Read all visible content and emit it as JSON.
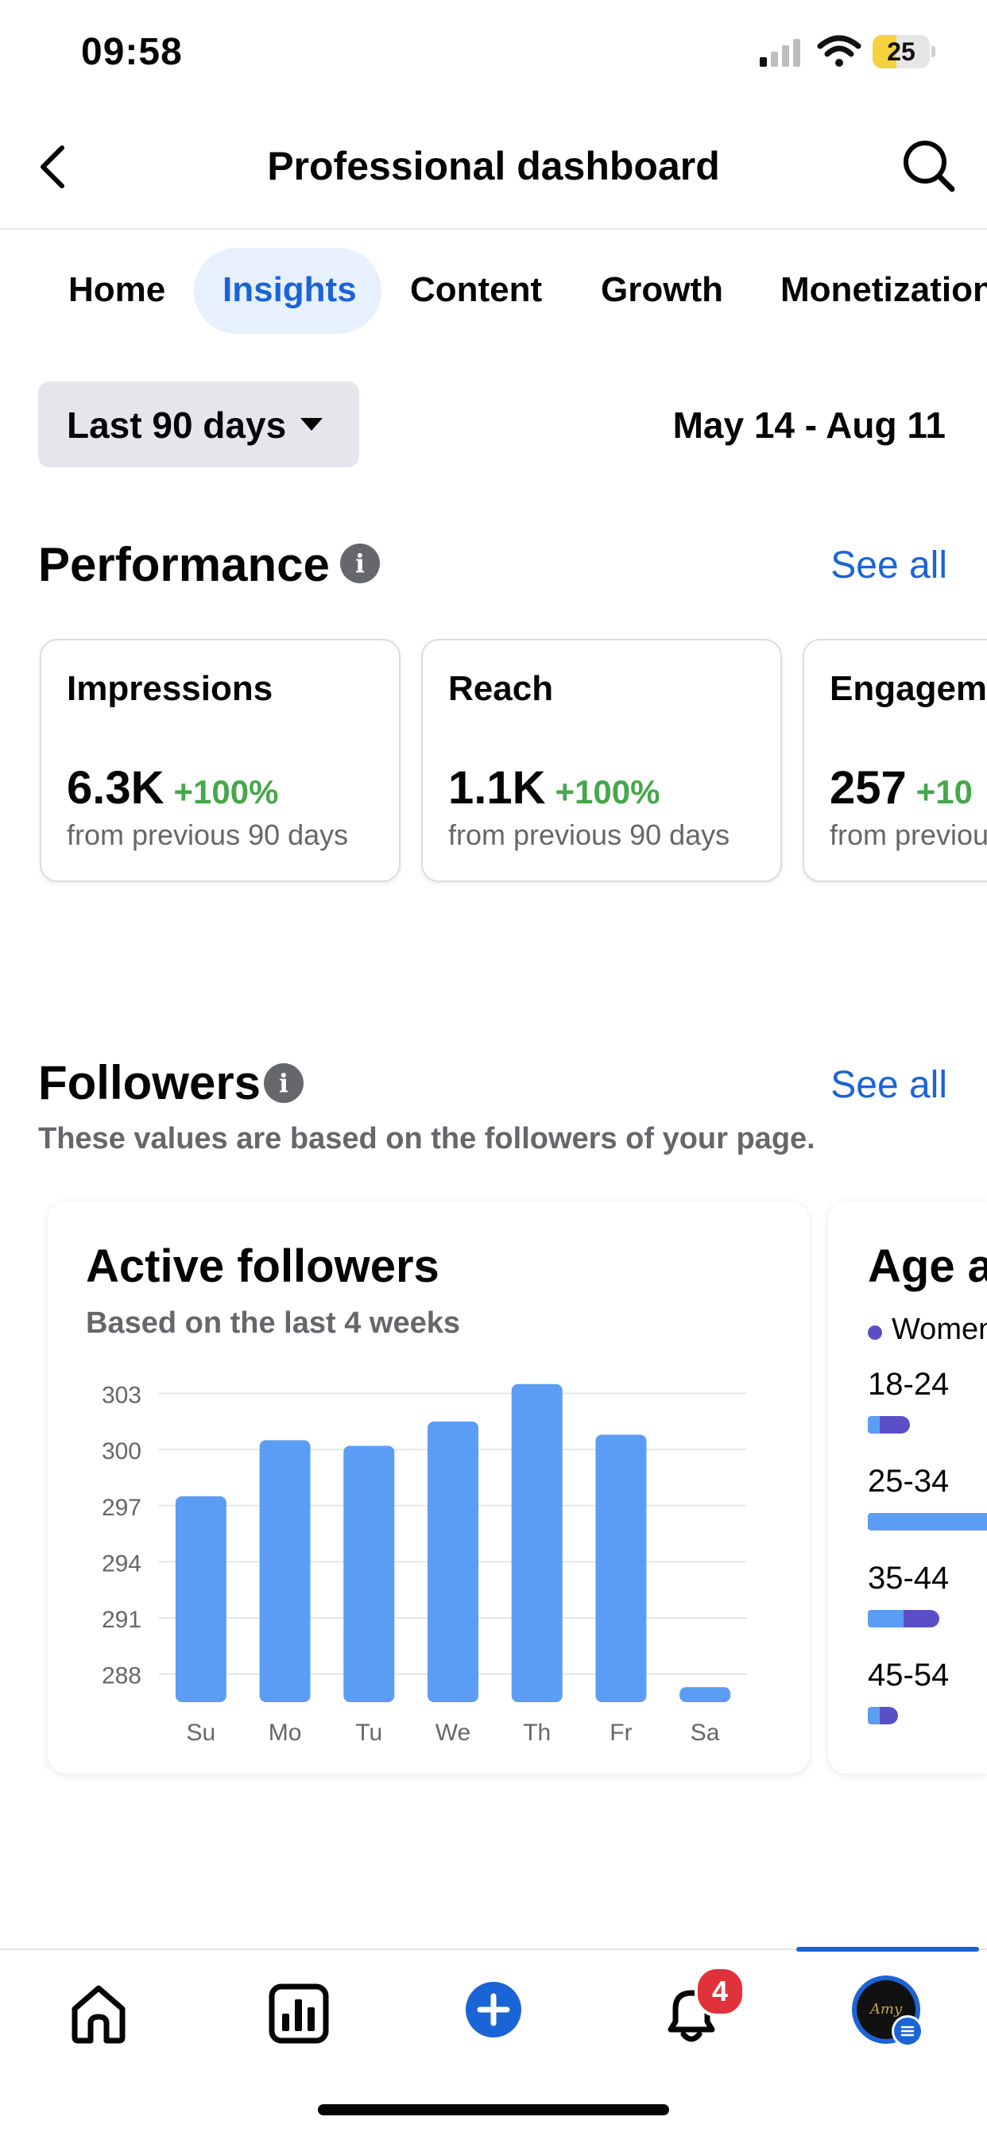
{
  "status_bar": {
    "time": "09:58",
    "battery": "25"
  },
  "header": {
    "title": "Professional dashboard"
  },
  "tabs": [
    {
      "label": "Home",
      "active": false
    },
    {
      "label": "Insights",
      "active": true
    },
    {
      "label": "Content",
      "active": false
    },
    {
      "label": "Growth",
      "active": false
    },
    {
      "label": "Monetization",
      "active": false
    }
  ],
  "filter": {
    "range_label": "Last 90 days",
    "date_range": "May 14 - Aug 11"
  },
  "performance": {
    "title": "Performance",
    "see_all": "See all",
    "cards": [
      {
        "label": "Impressions",
        "value": "6.3K",
        "delta": "+100%",
        "sub": "from previous 90 days"
      },
      {
        "label": "Reach",
        "value": "1.1K",
        "delta": "+100%",
        "sub": "from previous 90 days"
      },
      {
        "label": "Engagem",
        "value": "257",
        "delta": "+10",
        "sub": "from previou"
      }
    ]
  },
  "followers": {
    "title": "Followers",
    "see_all": "See all",
    "subtext": "These values are based on the followers of your page.",
    "active_followers": {
      "title": "Active followers",
      "subtitle": "Based on the last 4 weeks"
    },
    "age": {
      "title": "Age a",
      "legend": "Women",
      "groups": [
        {
          "label": "18-24",
          "a": 0.02,
          "b": 0.05
        },
        {
          "label": "25-34",
          "a": 0.2,
          "b": 0
        },
        {
          "label": "35-44",
          "a": 0.06,
          "b": 0.06
        },
        {
          "label": "45-54",
          "a": 0.02,
          "b": 0.03
        }
      ]
    }
  },
  "chart_data": {
    "type": "bar",
    "title": "Active followers",
    "subtitle": "Based on the last 4 weeks",
    "categories": [
      "Su",
      "Mo",
      "Tu",
      "We",
      "Th",
      "Fr",
      "Sa"
    ],
    "values": [
      297.5,
      300.5,
      300.2,
      301.5,
      303.5,
      300.8,
      287.3
    ],
    "yticks": [
      288,
      291,
      294,
      297,
      300,
      303
    ],
    "ylim": [
      286.5,
      304
    ],
    "grid": true,
    "color": "#5b9df5"
  },
  "bottom_nav": {
    "notification_count": "4",
    "avatar_text": "Amy"
  },
  "colors": {
    "accent": "#1b64d6",
    "positive": "#45a84a",
    "bar": "#5b9df5"
  }
}
